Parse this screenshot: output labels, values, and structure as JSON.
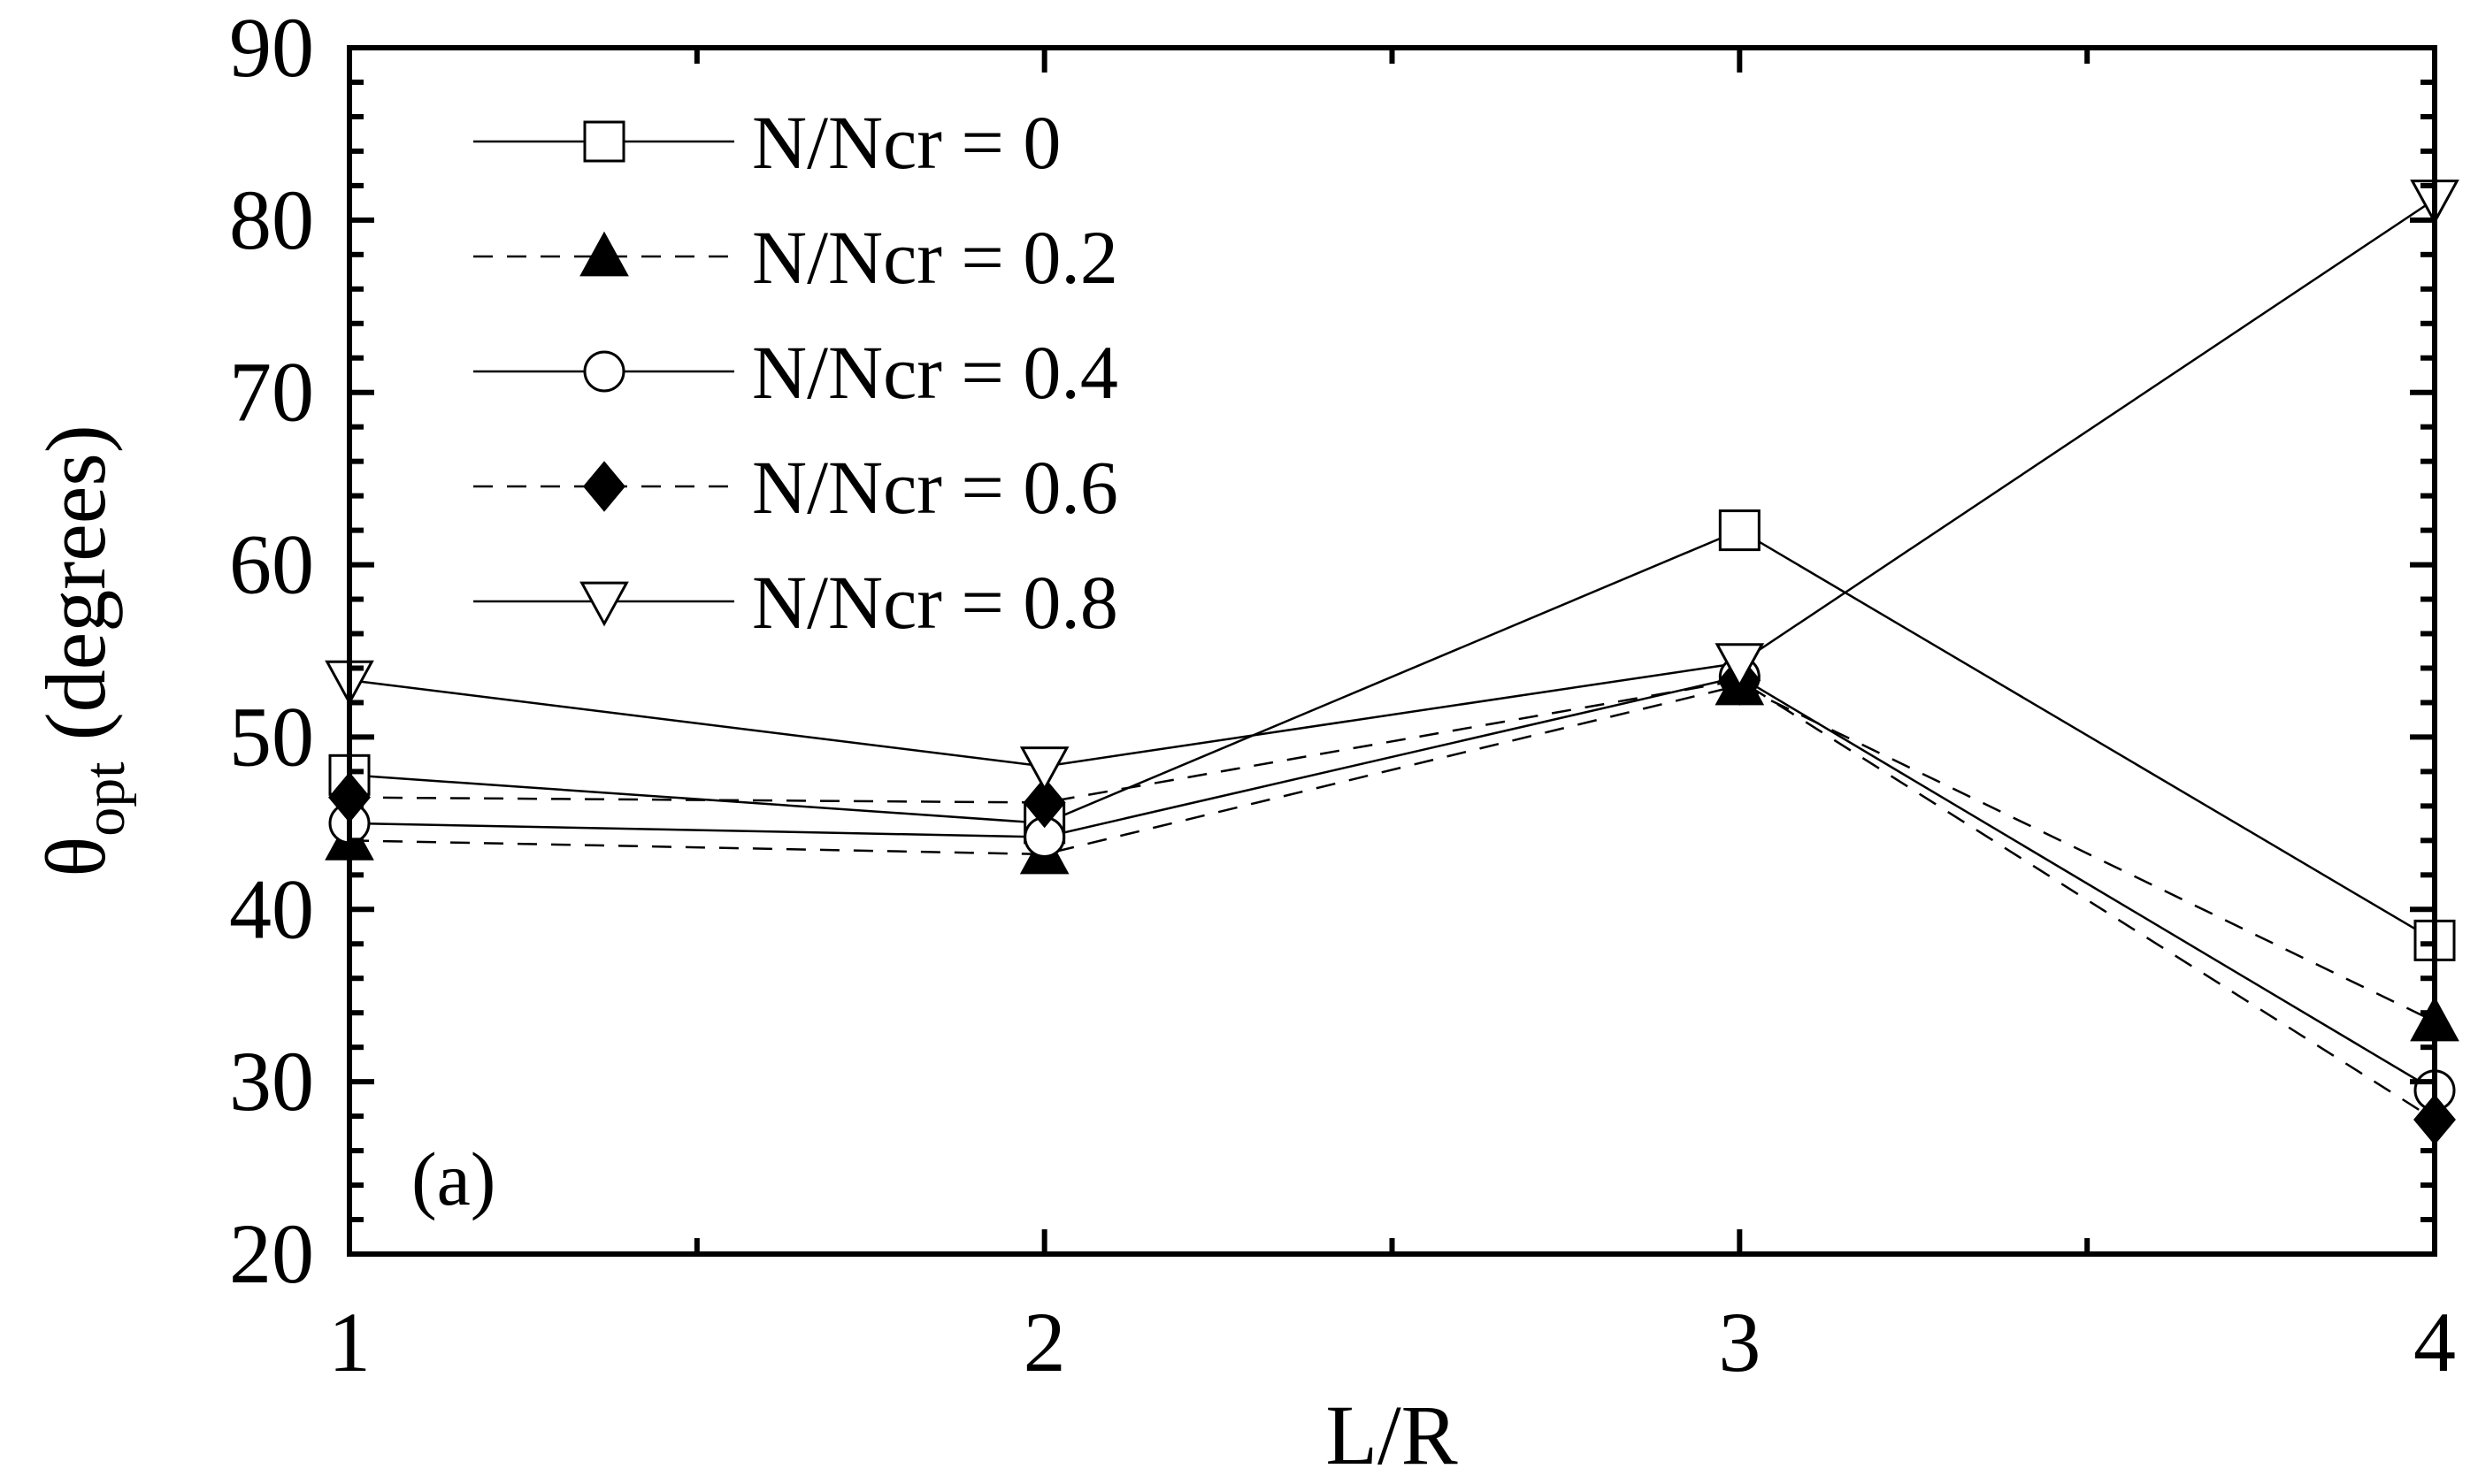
{
  "chart_data": {
    "type": "line",
    "xlabel": "L/R",
    "ylabel_main": "θ",
    "ylabel_sub": "opt",
    "ylabel_units": "(degrees)",
    "xlim": [
      1,
      4
    ],
    "ylim": [
      20,
      90
    ],
    "xticks": [
      "1",
      "2",
      "3",
      "4"
    ],
    "yticks": [
      "20",
      "30",
      "40",
      "50",
      "60",
      "70",
      "80",
      "90"
    ],
    "grid": false,
    "legend_position": "top-left",
    "panel_label": "(a)",
    "x": [
      1,
      2,
      3,
      4
    ],
    "series": [
      {
        "name": "N/Ncr = 0",
        "values": [
          47.8,
          45.0,
          62.0,
          38.2
        ],
        "marker": "square-open",
        "line": "solid"
      },
      {
        "name": "N/Ncr = 0.2",
        "values": [
          44.0,
          43.2,
          53.0,
          33.5
        ],
        "marker": "triangle-up-filled",
        "line": "dashed"
      },
      {
        "name": "N/Ncr = 0.4",
        "values": [
          45.0,
          44.2,
          53.5,
          29.5
        ],
        "marker": "circle-open",
        "line": "solid"
      },
      {
        "name": "N/Ncr = 0.6",
        "values": [
          46.5,
          46.2,
          53.3,
          27.8
        ],
        "marker": "diamond-filled",
        "line": "dashed"
      },
      {
        "name": "N/Ncr = 0.8",
        "values": [
          53.3,
          48.3,
          54.3,
          81.2
        ],
        "marker": "triangle-down-open",
        "line": "solid"
      }
    ]
  }
}
